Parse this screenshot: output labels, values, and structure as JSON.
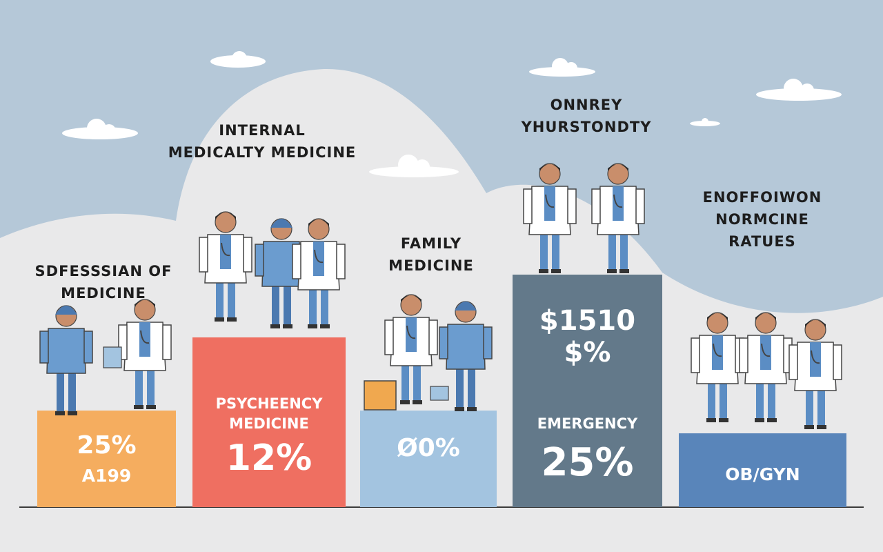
{
  "colors": {
    "sky": "#b5c8d8",
    "hill": "#e9e9ea",
    "orange": "#f5ad5f",
    "red": "#ef6f61",
    "light_blue": "#a3c4e0",
    "slate": "#63798a",
    "blue": "#5985ba",
    "scrub": "#5b8dc4",
    "coat": "#ffffff"
  },
  "columns": [
    {
      "title_lines": [
        "SDFESSSIAN OF",
        "MEDICINE"
      ],
      "box_lines": [
        "25%",
        "A199"
      ]
    },
    {
      "title_lines": [
        "INTERNAL",
        "MEDICALTY MEDICINE"
      ],
      "box_lines": [
        "PSYCHEENCY",
        "MEDICINE",
        "12%"
      ]
    },
    {
      "title_lines": [
        "FAMILY",
        "MEDICINE"
      ],
      "box_lines": [
        "Ø0%"
      ]
    },
    {
      "title_lines": [
        "ONNREY",
        "YHURSTONDTY"
      ],
      "box_lines": [
        "$1510",
        "$%",
        "EMERGENCY",
        "25%"
      ]
    },
    {
      "title_lines": [
        "ENOFFOIWON",
        "NORMCINE",
        "RATUES"
      ],
      "box_lines": [
        "OB/GYN"
      ]
    }
  ]
}
